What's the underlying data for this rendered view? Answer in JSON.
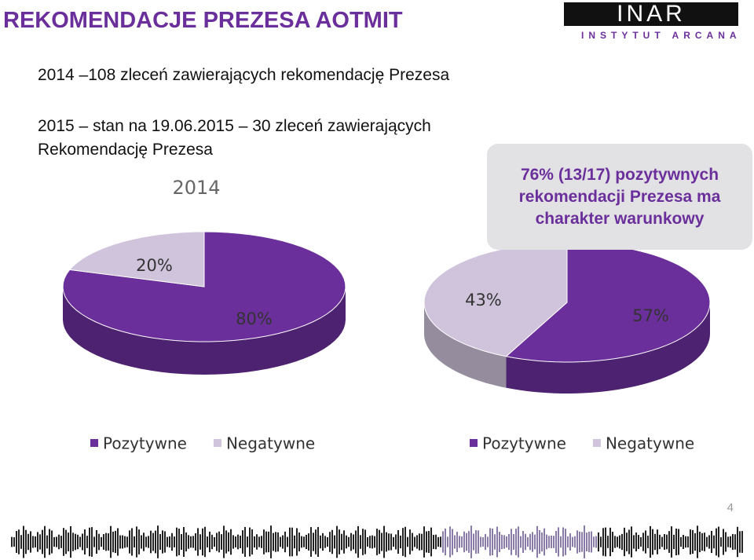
{
  "title": "REKOMENDACJE PREZESA AOTMIT",
  "logo": {
    "name": "INAR",
    "subtitle": "INSTYTUT ARCANA"
  },
  "lines": [
    "2014 –108 zleceń zawierających rekomendację Prezesa",
    "2015 – stan na 19.06.2015 – 30 zleceń zawierających Rekomendację Prezesa"
  ],
  "callout": [
    "76% (13/17) pozytywnych",
    "rekomendacji Prezesa ma",
    "charakter warunkowy"
  ],
  "page_number": "4",
  "chart_data": [
    {
      "type": "pie",
      "title": "2014",
      "categories": [
        "Pozytywne",
        "Negatywne"
      ],
      "values": [
        80,
        20
      ],
      "value_labels": [
        "80%",
        "20%"
      ],
      "colors": [
        "#6b2f9b",
        "#cfc4dc"
      ]
    },
    {
      "type": "pie",
      "categories": [
        "Pozytywne",
        "Negatywne"
      ],
      "values": [
        57,
        43
      ],
      "value_labels": [
        "57%",
        "43%"
      ],
      "colors": [
        "#6b2f9b",
        "#cfc4dc"
      ]
    }
  ]
}
